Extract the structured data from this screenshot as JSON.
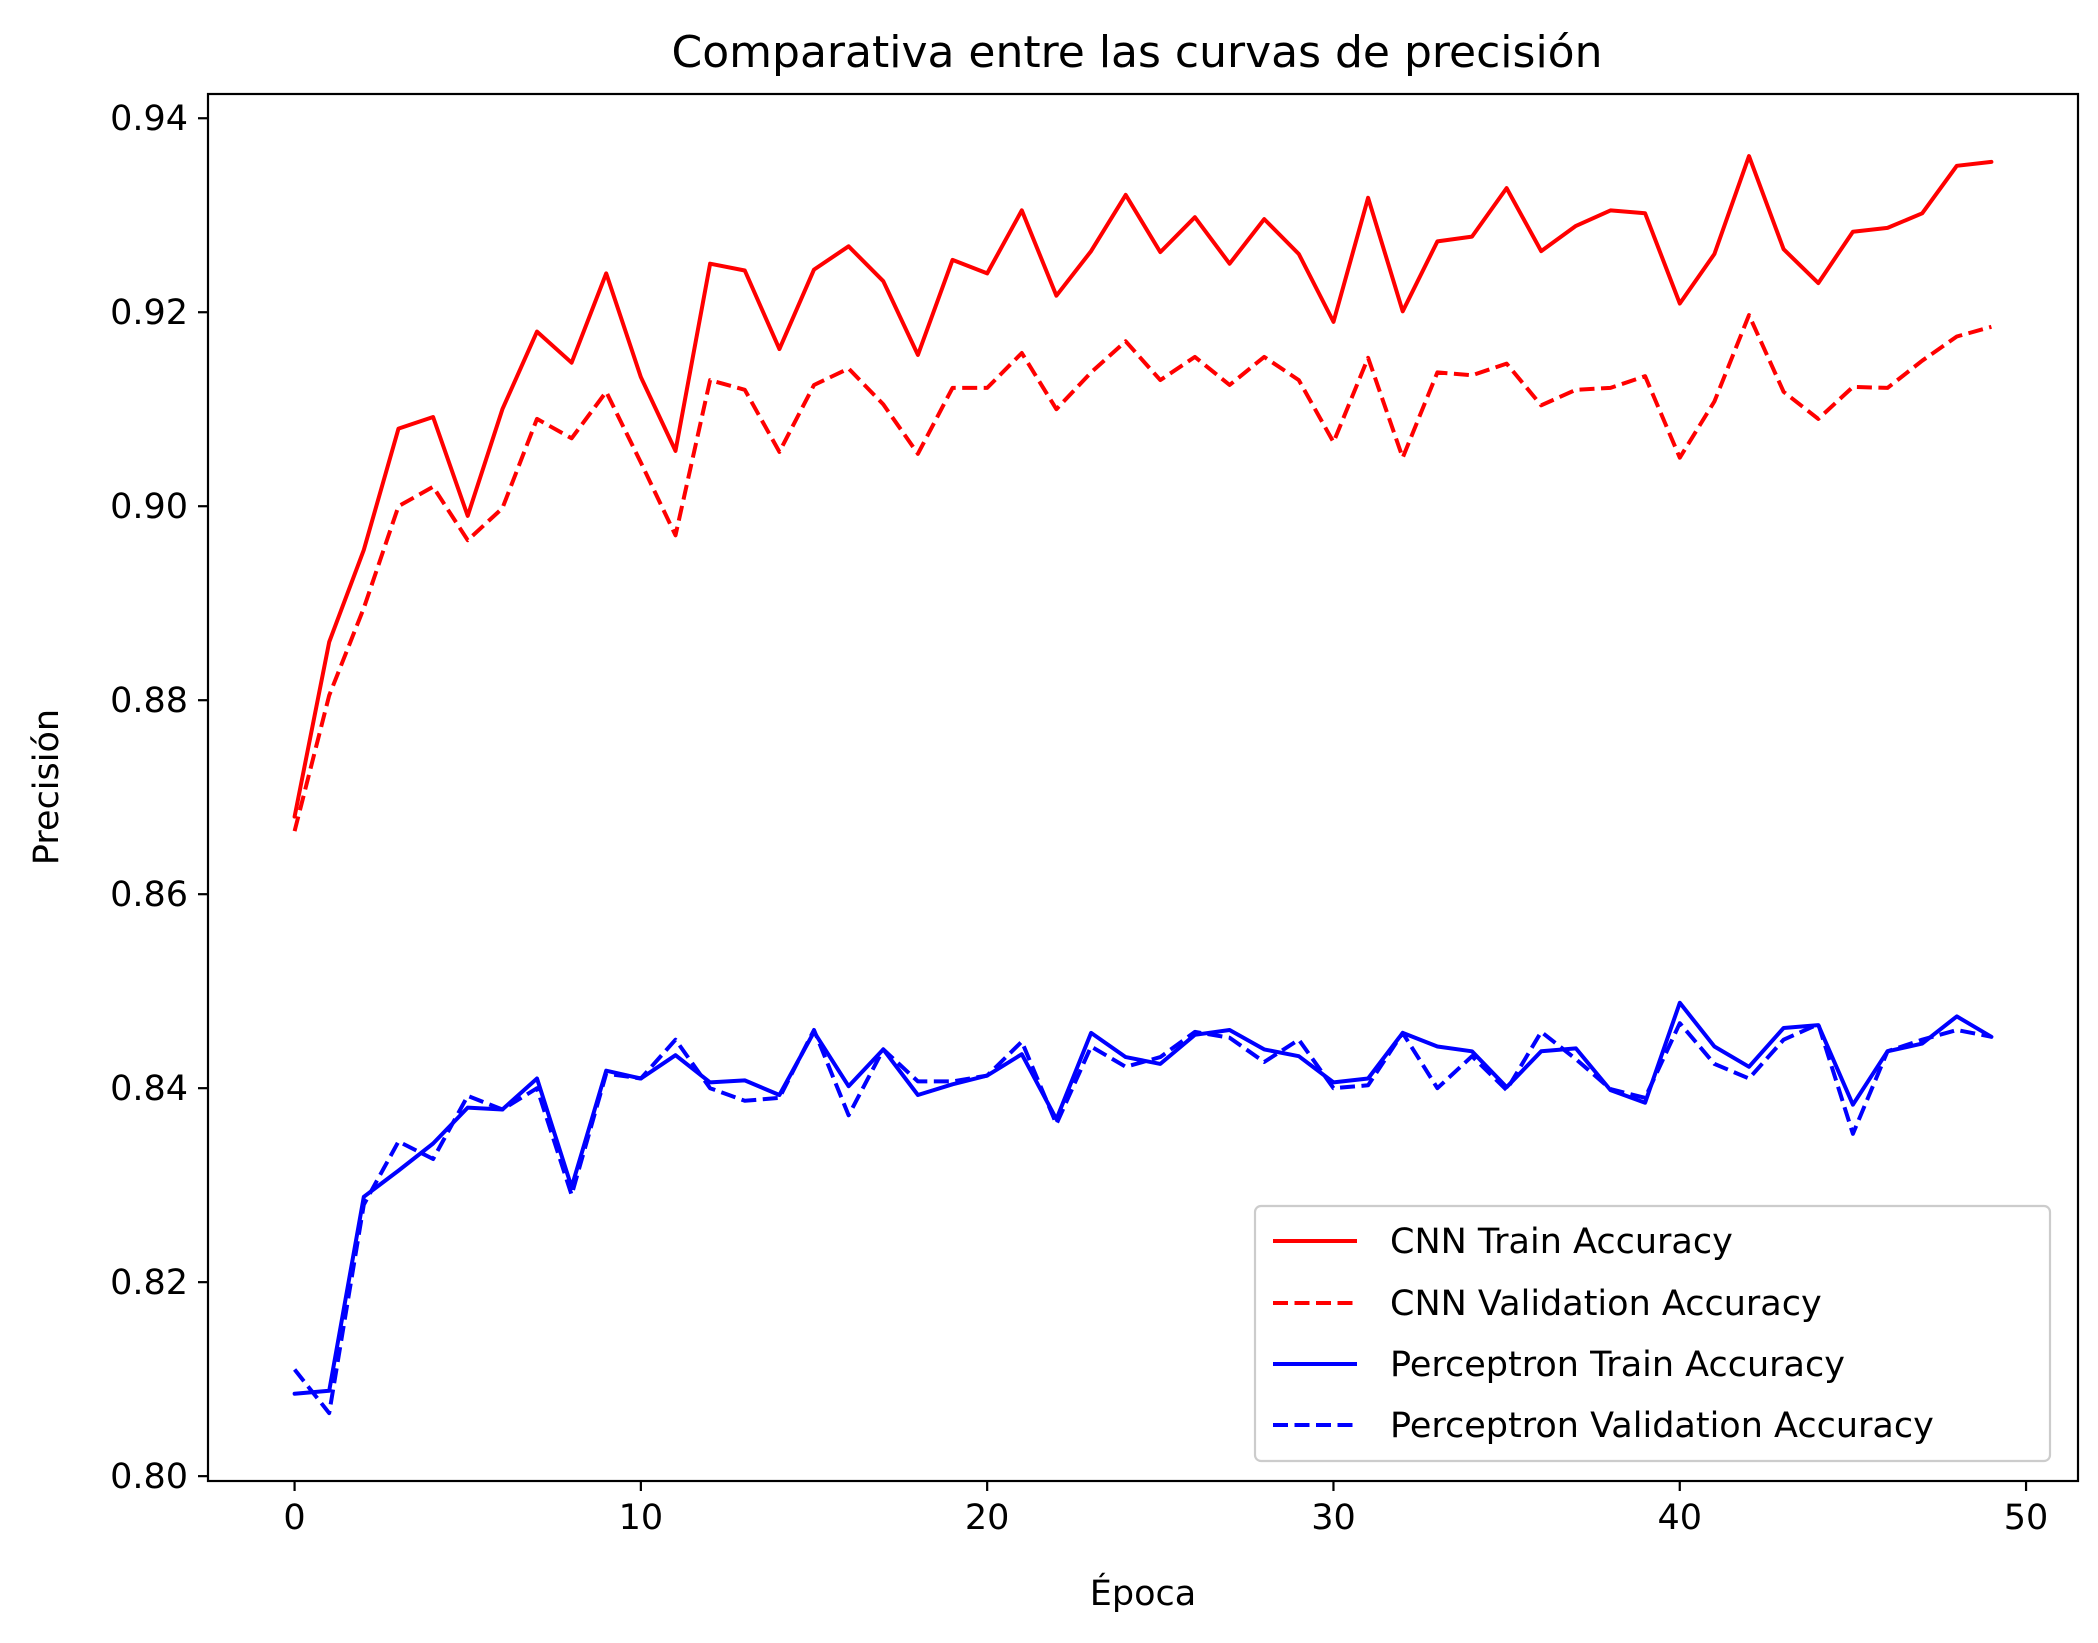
{
  "chart_data": {
    "type": "line",
    "title": "Comparativa entre las curvas de precisión",
    "xlabel": "Época",
    "ylabel": "Precisión",
    "xlim": [
      -2.5,
      51.5
    ],
    "ylim": [
      0.7995,
      0.9425
    ],
    "xticks": [
      0,
      10,
      20,
      30,
      40,
      50
    ],
    "yticks": [
      0.8,
      0.82,
      0.84,
      0.86,
      0.88,
      0.9,
      0.92,
      0.94
    ],
    "xtick_labels": [
      "0",
      "10",
      "20",
      "30",
      "40",
      "50"
    ],
    "ytick_labels": [
      "0.80",
      "0.82",
      "0.84",
      "0.86",
      "0.88",
      "0.90",
      "0.92",
      "0.94"
    ],
    "grid": false,
    "legend_position": "lower-right",
    "x": [
      0,
      1,
      2,
      3,
      4,
      5,
      6,
      7,
      8,
      9,
      10,
      11,
      12,
      13,
      14,
      15,
      16,
      17,
      18,
      19,
      20,
      21,
      22,
      23,
      24,
      25,
      26,
      27,
      28,
      29,
      30,
      31,
      32,
      33,
      34,
      35,
      36,
      37,
      38,
      39,
      40,
      41,
      42,
      43,
      44,
      45,
      46,
      47,
      48,
      49
    ],
    "series": [
      {
        "name": "CNN Train Accuracy",
        "color": "#ff0000",
        "dash": "solid",
        "values": [
          0.868,
          0.886,
          0.8955,
          0.908,
          0.9092,
          0.899,
          0.91,
          0.918,
          0.9148,
          0.924,
          0.9133,
          0.9057,
          0.925,
          0.9243,
          0.9162,
          0.9244,
          0.9268,
          0.9232,
          0.9156,
          0.9254,
          0.924,
          0.9305,
          0.9217,
          0.9263,
          0.9321,
          0.9262,
          0.9298,
          0.925,
          0.9296,
          0.926,
          0.919,
          0.9318,
          0.9201,
          0.9273,
          0.9278,
          0.9328,
          0.9263,
          0.9289,
          0.9305,
          0.9302,
          0.9209,
          0.926,
          0.9361,
          0.9265,
          0.923,
          0.9283,
          0.9287,
          0.9302,
          0.9351,
          0.9355
        ]
      },
      {
        "name": "CNN Validation Accuracy",
        "color": "#ff0000",
        "dash": "dashed",
        "values": [
          0.8665,
          0.8805,
          0.8895,
          0.9,
          0.902,
          0.8965,
          0.8998,
          0.909,
          0.907,
          0.9118,
          0.9045,
          0.897,
          0.913,
          0.912,
          0.9056,
          0.9125,
          0.9142,
          0.9105,
          0.9054,
          0.9122,
          0.9122,
          0.9158,
          0.91,
          0.9138,
          0.917,
          0.913,
          0.9154,
          0.9125,
          0.9154,
          0.913,
          0.9066,
          0.9153,
          0.905,
          0.9138,
          0.9135,
          0.9147,
          0.9104,
          0.912,
          0.9122,
          0.9134,
          0.905,
          0.9108,
          0.9197,
          0.9118,
          0.909,
          0.9123,
          0.9122,
          0.915,
          0.9175,
          0.9185
        ]
      },
      {
        "name": "Perceptron Train Accuracy",
        "color": "#0000ff",
        "dash": "solid",
        "values": [
          0.8085,
          0.8088,
          0.8288,
          0.8315,
          0.8343,
          0.838,
          0.8378,
          0.841,
          0.8298,
          0.8418,
          0.841,
          0.8434,
          0.8406,
          0.8408,
          0.8393,
          0.8458,
          0.8402,
          0.844,
          0.8393,
          0.8404,
          0.8413,
          0.8435,
          0.8368,
          0.8457,
          0.8432,
          0.8425,
          0.8455,
          0.846,
          0.844,
          0.8433,
          0.8406,
          0.841,
          0.8457,
          0.8443,
          0.8438,
          0.8401,
          0.8438,
          0.8441,
          0.8398,
          0.8385,
          0.8488,
          0.8443,
          0.8422,
          0.8462,
          0.8465,
          0.8383,
          0.8438,
          0.8446,
          0.8474,
          0.8453
        ]
      },
      {
        "name": "Perceptron Validation Accuracy",
        "color": "#0000ff",
        "dash": "dashed",
        "values": [
          0.811,
          0.8065,
          0.828,
          0.8345,
          0.8327,
          0.8392,
          0.8378,
          0.84,
          0.829,
          0.8415,
          0.841,
          0.845,
          0.84,
          0.8387,
          0.839,
          0.846,
          0.8372,
          0.844,
          0.8407,
          0.8407,
          0.8413,
          0.8448,
          0.8363,
          0.8443,
          0.8422,
          0.8432,
          0.8458,
          0.8452,
          0.8427,
          0.845,
          0.84,
          0.8403,
          0.8457,
          0.84,
          0.8433,
          0.8398,
          0.8458,
          0.843,
          0.8399,
          0.839,
          0.8467,
          0.8425,
          0.841,
          0.845,
          0.8466,
          0.8353,
          0.8438,
          0.845,
          0.846,
          0.8453
        ]
      }
    ]
  }
}
